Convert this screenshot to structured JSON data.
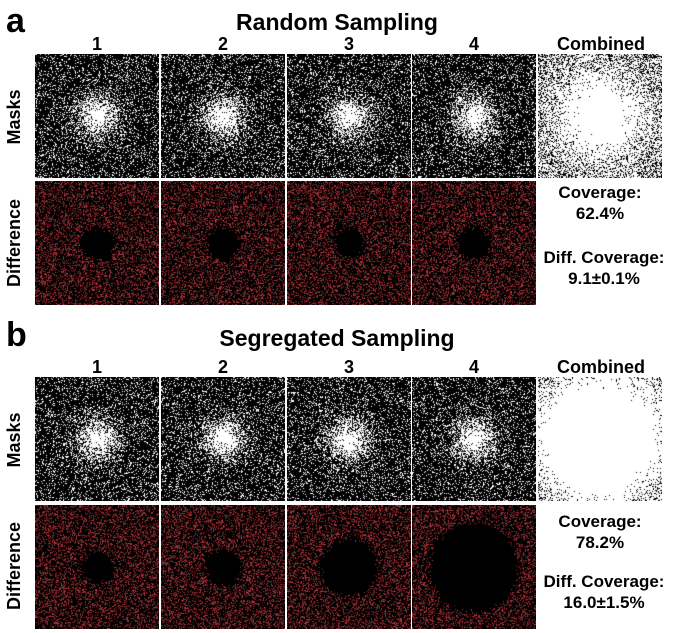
{
  "panels": [
    {
      "letter": "a",
      "title": "Random Sampling",
      "columns": [
        "1",
        "2",
        "3",
        "4"
      ],
      "combined_label": "Combined",
      "row_labels": {
        "masks": "Masks",
        "difference": "Difference"
      },
      "coverage_label": "Coverage:",
      "coverage_value": "62.4%",
      "diff_coverage_label": "Diff. Coverage:",
      "diff_coverage_value": "9.1±0.1%",
      "hole_radii": [
        0.13,
        0.13,
        0.12,
        0.13
      ],
      "combined_core": 0.15
    },
    {
      "letter": "b",
      "title": "Segregated Sampling",
      "columns": [
        "1",
        "2",
        "3",
        "4"
      ],
      "combined_label": "Combined",
      "row_labels": {
        "masks": "Masks",
        "difference": "Difference"
      },
      "coverage_label": "Coverage:",
      "coverage_value": "78.2%",
      "diff_coverage_label": "Diff. Coverage:",
      "diff_coverage_value": "16.0±1.5%",
      "hole_radii": [
        0.13,
        0.15,
        0.23,
        0.36
      ],
      "combined_core": 0.38
    }
  ],
  "colors": {
    "mask_white": "#ffffff",
    "background": "#000000",
    "difference_red": "#c0393f"
  }
}
